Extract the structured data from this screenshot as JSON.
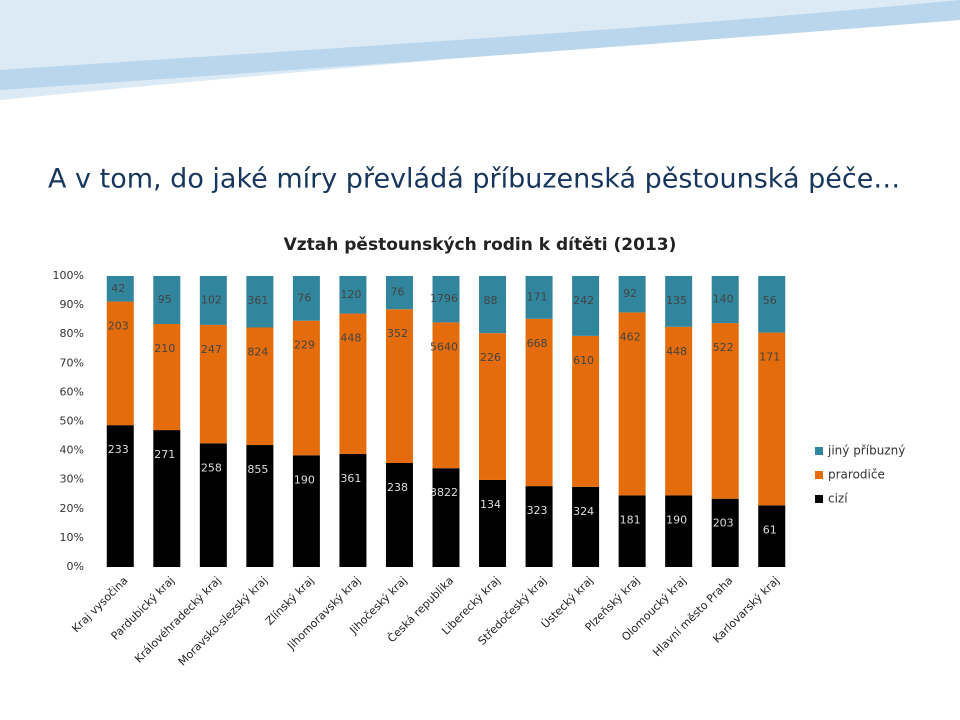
{
  "heading": "A v tom, do jaké míry převládá příbuzenská pěstounská péče…",
  "chart_data": {
    "type": "bar",
    "stacking": "percent",
    "title": "Vztah pěstounských rodin k dítěti (2013)",
    "categories": [
      "Kraj vysočina",
      "Pardubický kraj",
      "Královéhradecký kraj",
      "Moravsko-slezský kraj",
      "Zlínský kraj",
      "Jihomoravský kraj",
      "Jihočeský kraj",
      "Česká republika",
      "Liberecký kraj",
      "Středočeský kraj",
      "Ústecký kraj",
      "Plzeňský kraj",
      "Olomoucký kraj",
      "Hlavní město Praha",
      "Karlovarský kraj"
    ],
    "series": [
      {
        "name": "cizí",
        "color": "#000000",
        "values": [
          233,
          271,
          258,
          855,
          190,
          361,
          238,
          3822,
          134,
          323,
          324,
          181,
          190,
          203,
          61
        ]
      },
      {
        "name": "prarodiče",
        "color": "#e46c0a",
        "values": [
          203,
          210,
          247,
          824,
          229,
          448,
          352,
          5640,
          226,
          668,
          610,
          462,
          448,
          522,
          171
        ]
      },
      {
        "name": "jiný příbuzný",
        "color": "#31859c",
        "values": [
          42,
          95,
          102,
          361,
          76,
          120,
          76,
          1796,
          88,
          171,
          242,
          92,
          135,
          140,
          56
        ]
      }
    ],
    "ylim": [
      0,
      100
    ],
    "yticks": [
      {
        "value": 0,
        "label": "0%"
      },
      {
        "value": 10,
        "label": "10%"
      },
      {
        "value": 20,
        "label": "20%"
      },
      {
        "value": 30,
        "label": "30%"
      },
      {
        "value": 40,
        "label": "40%"
      },
      {
        "value": 50,
        "label": "50%"
      },
      {
        "value": 60,
        "label": "60%"
      },
      {
        "value": 70,
        "label": "70%"
      },
      {
        "value": 80,
        "label": "80%"
      },
      {
        "value": 90,
        "label": "90%"
      },
      {
        "value": 100,
        "label": "100%"
      }
    ],
    "legend": "right"
  }
}
